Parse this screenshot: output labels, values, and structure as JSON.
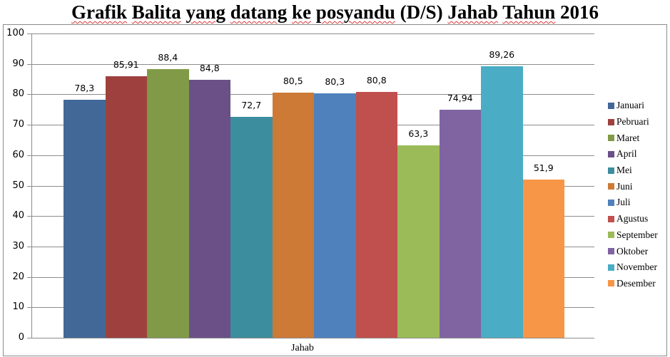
{
  "chart_data": {
    "type": "bar",
    "title": "Grafik Balita yang datang ke posyandu (D/S) Jahab Tahun 2016",
    "xlabel": "Jahab",
    "ylabel": "",
    "ylim": [
      0,
      100
    ],
    "yticks": [
      "0",
      "10",
      "20",
      "30",
      "40",
      "50",
      "60",
      "70",
      "80",
      "90",
      "100"
    ],
    "grid": true,
    "legend_position": "right",
    "categories": [
      "Jahab"
    ],
    "series": [
      {
        "name": "Januari",
        "values": [
          78.3
        ],
        "label": "78,3",
        "color": "#426898"
      },
      {
        "name": "Pebruari",
        "values": [
          85.91
        ],
        "label": "85,91",
        "color": "#9e413e"
      },
      {
        "name": "Maret",
        "values": [
          88.4
        ],
        "label": "88,4",
        "color": "#809a47"
      },
      {
        "name": "April",
        "values": [
          84.8
        ],
        "label": "84,8",
        "color": "#6a5087"
      },
      {
        "name": "Mei",
        "values": [
          72.7
        ],
        "label": "72,7",
        "color": "#3c8d9d"
      },
      {
        "name": "Juni",
        "values": [
          80.5
        ],
        "label": "80,5",
        "color": "#cd7a37"
      },
      {
        "name": "Juli",
        "values": [
          80.3
        ],
        "label": "80,3",
        "color": "#4f81bd"
      },
      {
        "name": "Agustus",
        "values": [
          80.8
        ],
        "label": "80,8",
        "color": "#c0504d"
      },
      {
        "name": "September",
        "values": [
          63.3
        ],
        "label": "63,3",
        "color": "#9bbb59"
      },
      {
        "name": "Oktober",
        "values": [
          74.94
        ],
        "label": "74,94",
        "color": "#8064a2"
      },
      {
        "name": "November",
        "values": [
          89.26
        ],
        "label": "89,26",
        "color": "#4bacc6"
      },
      {
        "name": "Desember",
        "values": [
          51.9
        ],
        "label": "51,9",
        "color": "#f79646"
      }
    ]
  }
}
